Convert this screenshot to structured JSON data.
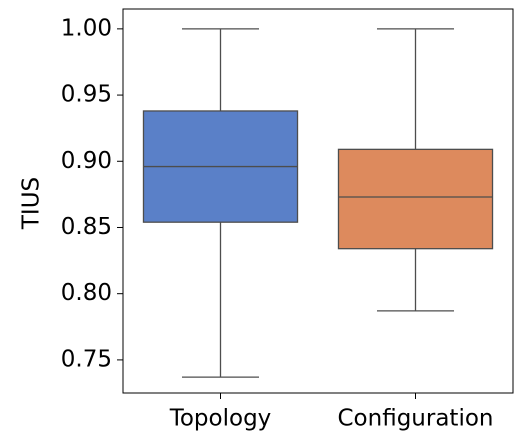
{
  "chart_data": {
    "type": "box",
    "title": "",
    "xlabel": "",
    "ylabel": "TIUS",
    "ylim": [
      0.725,
      1.015
    ],
    "yticks": [
      "0.75",
      "0.80",
      "0.85",
      "0.90",
      "0.95",
      "1.00"
    ],
    "grid": false,
    "categories": [
      "Topology",
      "Configuration"
    ],
    "boxes": [
      {
        "category": "Topology",
        "whisker_low": 0.737,
        "q1": 0.854,
        "median": 0.896,
        "q3": 0.938,
        "whisker_high": 1.0,
        "color": "#5a80c8"
      },
      {
        "category": "Configuration",
        "whisker_low": 0.787,
        "q1": 0.834,
        "median": 0.873,
        "q3": 0.909,
        "whisker_high": 1.0,
        "color": "#dd8a5d"
      }
    ],
    "line_color": "#4d4d4d"
  }
}
